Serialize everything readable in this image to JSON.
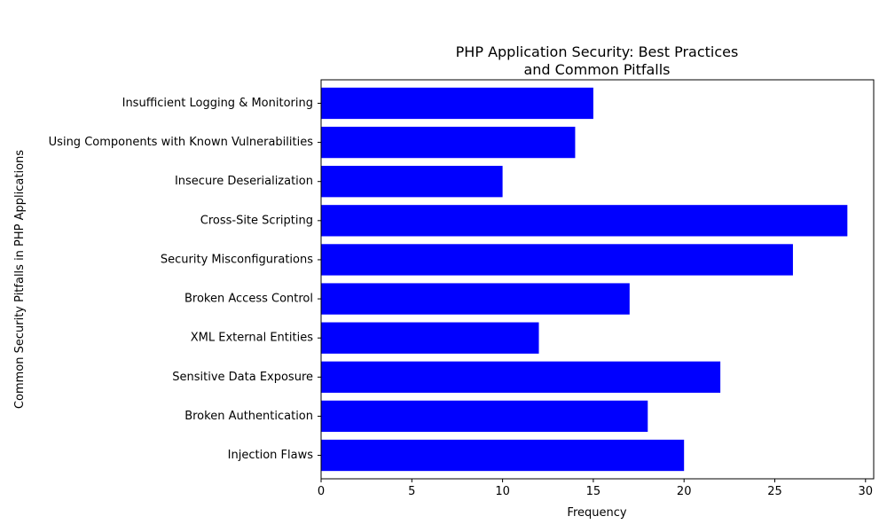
{
  "chart_data": {
    "type": "bar",
    "orientation": "horizontal",
    "title_lines": [
      "PHP Application Security: Best Practices",
      "and Common Pitfalls"
    ],
    "xlabel": "Frequency",
    "ylabel": "Common Security Pitfalls in PHP Applications",
    "categories": [
      "Injection Flaws",
      "Broken Authentication",
      "Sensitive Data Exposure",
      "XML External Entities",
      "Broken Access Control",
      "Security Misconfigurations",
      "Cross-Site Scripting",
      "Insecure Deserialization",
      "Using Components with Known Vulnerabilities",
      "Insufficient Logging & Monitoring"
    ],
    "values": [
      20,
      18,
      22,
      12,
      17,
      26,
      29,
      10,
      14,
      15
    ],
    "xlim": [
      0,
      30.45
    ],
    "xticks": [
      0,
      5,
      10,
      15,
      20,
      25,
      30
    ],
    "bar_color": "#0000ff",
    "grid": false,
    "legend": "none"
  }
}
